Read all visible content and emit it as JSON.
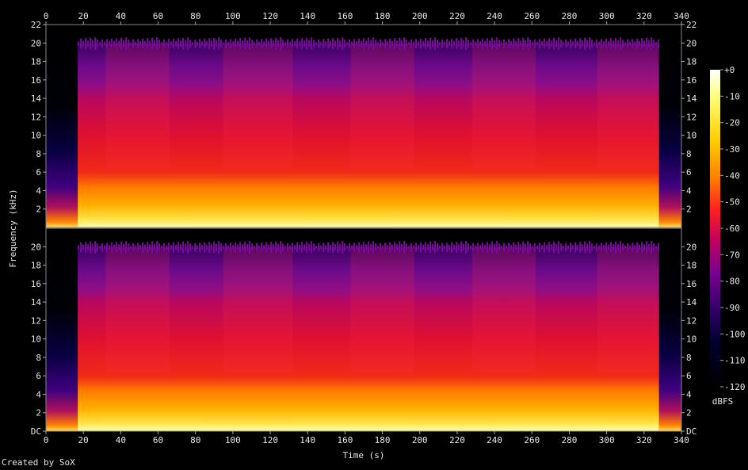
{
  "chart_data": {
    "type": "heatmap",
    "title": "",
    "xlabel": "Time (s)",
    "ylabel": "Frequency (kHz)",
    "colorbar_label": "dBFS",
    "credit": "Created by SoX",
    "xlim": [
      0,
      340
    ],
    "x_ticks": [
      0,
      20,
      40,
      60,
      80,
      100,
      120,
      140,
      160,
      180,
      200,
      220,
      240,
      260,
      280,
      300,
      320,
      340
    ],
    "ylim": [
      0,
      22
    ],
    "channels": [
      {
        "channel": 1,
        "y_tick_labels": [
          "2",
          "4",
          "6",
          "8",
          "10",
          "12",
          "14",
          "16",
          "18",
          "20",
          "22"
        ],
        "y_tick_values": [
          2,
          4,
          6,
          8,
          10,
          12,
          14,
          16,
          18,
          20,
          22
        ]
      },
      {
        "channel": 2,
        "y_tick_labels": [
          "DC",
          "2",
          "4",
          "6",
          "8",
          "10",
          "12",
          "14",
          "16",
          "18",
          "20"
        ],
        "y_tick_values": [
          0,
          2,
          4,
          6,
          8,
          10,
          12,
          14,
          16,
          18,
          20
        ]
      }
    ],
    "colorbar": {
      "range": [
        -120,
        0
      ],
      "tick_labels": [
        "+0",
        "-10",
        "-20",
        "-30",
        "-40",
        "-50",
        "-60",
        "-70",
        "-80",
        "-90",
        "-100",
        "-110",
        "-120"
      ],
      "tick_values": [
        0,
        -10,
        -20,
        -30,
        -40,
        -50,
        -60,
        -70,
        -80,
        -90,
        -100,
        -110,
        -120
      ],
      "colors": [
        "#ffffff",
        "#ffff80",
        "#ffd000",
        "#ff8000",
        "#ff2020",
        "#c00060",
        "#7a0090",
        "#3a0070",
        "#000030",
        "#000000"
      ]
    },
    "audio_start_s": 17,
    "audio_end_s": 328,
    "section_boundaries_s": [
      32,
      66,
      95,
      132,
      163,
      197,
      228,
      262,
      295
    ]
  }
}
